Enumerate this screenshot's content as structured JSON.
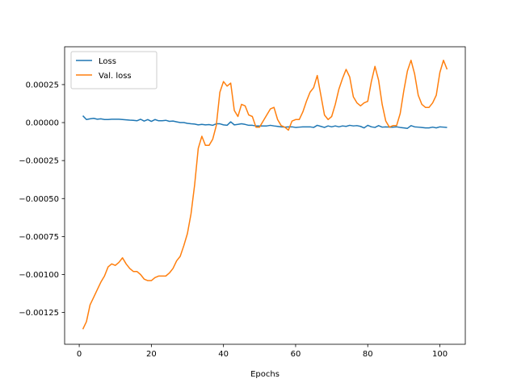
{
  "chart_data": {
    "type": "line",
    "xlabel": "Epochs",
    "x": [
      1,
      2,
      3,
      4,
      5,
      6,
      7,
      8,
      9,
      10,
      11,
      12,
      13,
      14,
      15,
      16,
      17,
      18,
      19,
      20,
      21,
      22,
      23,
      24,
      25,
      26,
      27,
      28,
      29,
      30,
      31,
      32,
      33,
      34,
      35,
      36,
      37,
      38,
      39,
      40,
      41,
      42,
      43,
      44,
      45,
      46,
      47,
      48,
      49,
      50,
      51,
      52,
      53,
      54,
      55,
      56,
      57,
      58,
      59,
      60,
      61,
      62,
      63,
      64,
      65,
      66,
      67,
      68,
      69,
      70,
      71,
      72,
      73,
      74,
      75,
      76,
      77,
      78,
      79,
      80,
      81,
      82,
      83,
      84,
      85,
      86,
      87,
      88,
      89,
      90,
      91,
      92,
      93,
      94,
      95,
      96,
      97,
      98,
      99,
      100,
      101,
      102
    ],
    "series": [
      {
        "name": "Loss",
        "color": "#1f77b4",
        "values": [
          4.5e-05,
          2e-05,
          2.5e-05,
          2.8e-05,
          2.2e-05,
          2.5e-05,
          2e-05,
          2e-05,
          2.2e-05,
          2.2e-05,
          2.2e-05,
          2e-05,
          1.8e-05,
          1.6e-05,
          1.5e-05,
          1.2e-05,
          2.2e-05,
          1e-05,
          2e-05,
          8e-06,
          2e-05,
          1.2e-05,
          1.2e-05,
          1.5e-05,
          8e-06,
          1e-05,
          5e-06,
          0,
          0,
          -5e-06,
          -8e-06,
          -1e-05,
          -1.5e-05,
          -1.2e-05,
          -1.5e-05,
          -1.3e-05,
          -1.8e-05,
          -8e-06,
          -8e-06,
          -1.5e-05,
          -1.8e-05,
          5e-06,
          -1.5e-05,
          -1.2e-05,
          -8e-06,
          -1.2e-05,
          -1.8e-05,
          -1.8e-05,
          -2.2e-05,
          -2.2e-05,
          -2.2e-05,
          -2.2e-05,
          -1.8e-05,
          -2.2e-05,
          -2.5e-05,
          -2.8e-05,
          -3e-05,
          -2.8e-05,
          -2.8e-05,
          -3.2e-05,
          -3e-05,
          -2.8e-05,
          -2.8e-05,
          -2.8e-05,
          -3.2e-05,
          -1.8e-05,
          -2.5e-05,
          -3.2e-05,
          -2.2e-05,
          -2.8e-05,
          -2.2e-05,
          -2.8e-05,
          -2.2e-05,
          -2.5e-05,
          -1.8e-05,
          -2.2e-05,
          -2e-05,
          -2.5e-05,
          -3.5e-05,
          -1.8e-05,
          -2.8e-05,
          -3.2e-05,
          -2e-05,
          -3e-05,
          -2.8e-05,
          -3e-05,
          -3e-05,
          -2.8e-05,
          -3.2e-05,
          -3.5e-05,
          -3.8e-05,
          -2e-05,
          -2.8e-05,
          -3e-05,
          -3.2e-05,
          -3.5e-05,
          -3.5e-05,
          -3e-05,
          -3.5e-05,
          -2.8e-05,
          -3e-05,
          -3.2e-05
        ]
      },
      {
        "name": "Val. loss",
        "color": "#ff7f0e",
        "values": [
          -0.00136,
          -0.00131,
          -0.0012,
          -0.00115,
          -0.0011,
          -0.00105,
          -0.00101,
          -0.00095,
          -0.00093,
          -0.00094,
          -0.00092,
          -0.00089,
          -0.00093,
          -0.00096,
          -0.00098,
          -0.00098,
          -0.001,
          -0.00103,
          -0.00104,
          -0.00104,
          -0.00102,
          -0.00101,
          -0.00101,
          -0.00101,
          -0.00099,
          -0.00096,
          -0.00091,
          -0.00088,
          -0.00081,
          -0.00073,
          -0.0006,
          -0.00041,
          -0.00017,
          -9e-05,
          -0.00015,
          -0.00015,
          -0.00011,
          -2e-05,
          0.0002,
          0.00027,
          0.00024,
          0.00026,
          8e-05,
          4e-05,
          0.00012,
          0.00011,
          5e-05,
          4e-05,
          -3e-05,
          -3e-05,
          1e-05,
          5e-05,
          9e-05,
          0.0001,
          2e-05,
          -2e-05,
          -3e-05,
          -5e-05,
          1e-05,
          2e-05,
          2e-05,
          7e-05,
          0.00014,
          0.0002,
          0.00023,
          0.00031,
          0.00018,
          5e-05,
          2e-05,
          4e-05,
          0.00012,
          0.00022,
          0.00029,
          0.00035,
          0.0003,
          0.00017,
          0.00013,
          0.00011,
          0.00013,
          0.00014,
          0.00027,
          0.00037,
          0.00028,
          0.00012,
          1e-05,
          -3e-05,
          -2e-05,
          -2e-05,
          6e-05,
          0.00021,
          0.00034,
          0.00041,
          0.00032,
          0.00018,
          0.00012,
          0.0001,
          0.0001,
          0.00013,
          0.00018,
          0.00033,
          0.00041,
          0.00035
        ]
      }
    ],
    "xlim": [
      -4.05,
      107.05
    ],
    "ylim": [
      -0.001459,
      0.000499
    ],
    "xticks": [
      0,
      20,
      40,
      60,
      80,
      100
    ],
    "yticks": [
      {
        "value": -0.00125,
        "label": "−0.00125"
      },
      {
        "value": -0.001,
        "label": "−0.00100"
      },
      {
        "value": -0.00075,
        "label": "−0.00075"
      },
      {
        "value": -0.0005,
        "label": "−0.00050"
      },
      {
        "value": -0.00025,
        "label": "−0.00025"
      },
      {
        "value": 0,
        "label": "0.00000"
      },
      {
        "value": 0.00025,
        "label": "0.00025"
      }
    ],
    "legend": "upper left"
  }
}
